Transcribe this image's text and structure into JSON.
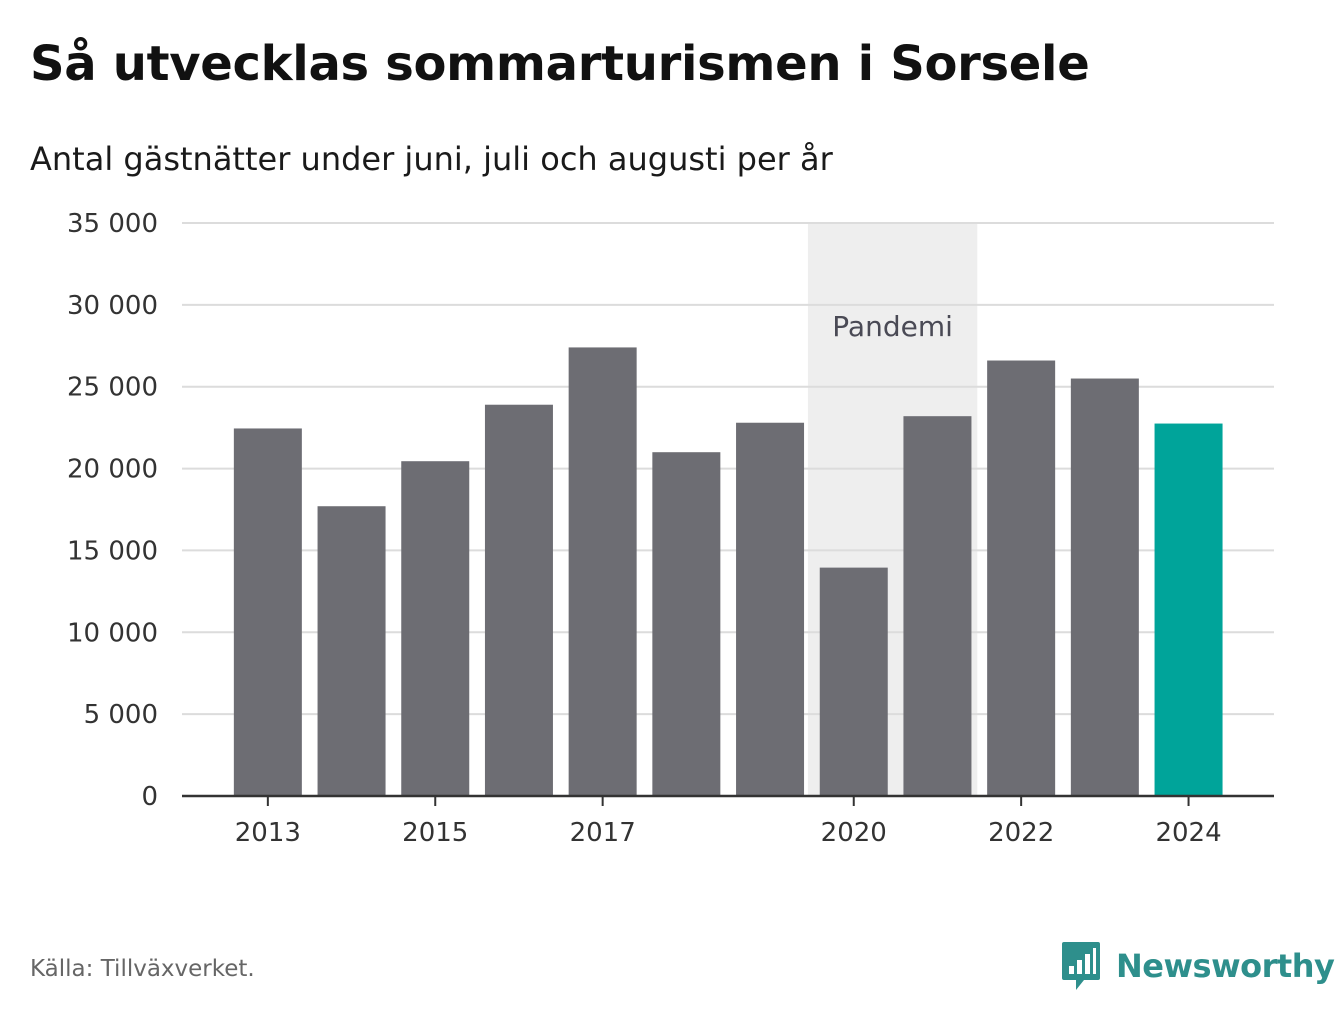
{
  "chart_data": {
    "type": "bar",
    "title": "Så utvecklas sommarturismen i Sorsele",
    "subtitle": "Antal gästnätter under juni, juli och augusti per år",
    "categories": [
      "2013",
      "2014",
      "2015",
      "2016",
      "2017",
      "2018",
      "2019",
      "2020",
      "2021",
      "2022",
      "2023",
      "2024"
    ],
    "values": [
      22450,
      17700,
      20450,
      23900,
      27400,
      21000,
      22800,
      13950,
      23200,
      26600,
      25500,
      22750
    ],
    "x_tick_labels": [
      "2013",
      "2015",
      "2017",
      "2020",
      "2022",
      "2024"
    ],
    "y_ticks": [
      0,
      5000,
      10000,
      15000,
      20000,
      25000,
      30000,
      35000
    ],
    "y_tick_labels": [
      "0",
      "5 000",
      "10 000",
      "15 000",
      "20 000",
      "25 000",
      "30 000",
      "35 000"
    ],
    "ylim": [
      0,
      35000
    ],
    "grid": true,
    "highlight_category": "2024",
    "bar_color": "#6d6d73",
    "highlight_color": "#00a49a",
    "shaded_band": {
      "from": "2020",
      "to": "2021",
      "label": "Pandemi",
      "color": "#eeeeee"
    }
  },
  "footer": {
    "source": "Källa: Tillväxverket.",
    "logo_text": "Newsworthy",
    "logo_color": "#2e8f8c",
    "logo_icon": "bar-chart-speech-icon"
  }
}
